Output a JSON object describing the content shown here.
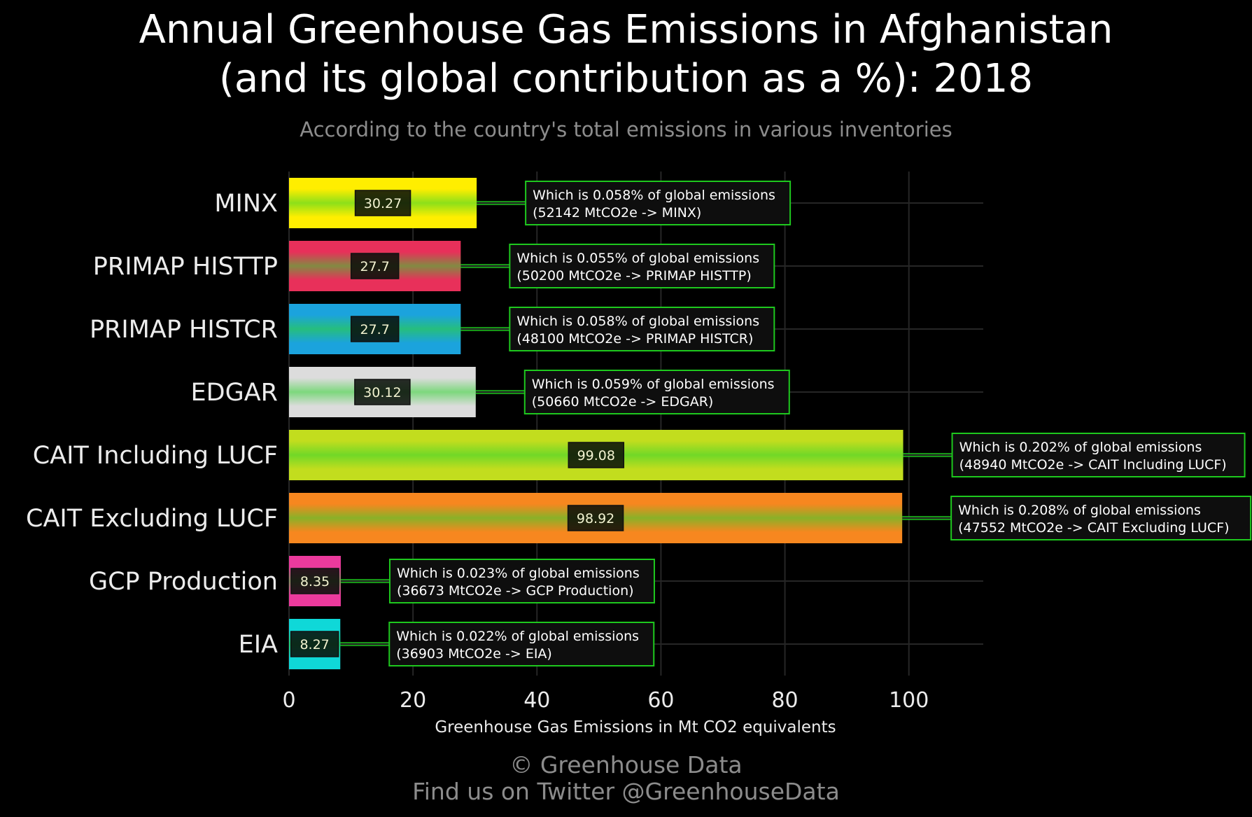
{
  "page": {
    "title_line1": "Annual Greenhouse Gas Emissions in Afghanistan",
    "title_line2": "(and its global contribution as a %): 2018",
    "subtitle": "According to the country's total emissions in various inventories",
    "copyright": "© Greenhouse Data",
    "twitter": "Find us on Twitter @GreenhouseData"
  },
  "chart_data": {
    "type": "bar",
    "orientation": "horizontal",
    "xlabel": "Greenhouse Gas Emissions in Mt CO2 equivalents",
    "ylabel": "",
    "xlim": [
      0,
      112
    ],
    "xticks": [
      0,
      20,
      40,
      60,
      80,
      100
    ],
    "grid": true,
    "categories": [
      "MINX",
      "PRIMAP HISTTP",
      "PRIMAP HISTCR",
      "EDGAR",
      "CAIT Including LUCF",
      "CAIT Excluding LUCF",
      "GCP Production",
      "EIA"
    ],
    "values": [
      30.27,
      27.7,
      27.7,
      30.12,
      99.08,
      98.92,
      8.35,
      8.27
    ],
    "value_labels": [
      "30.27",
      "27.7",
      "27.7",
      "30.12",
      "99.08",
      "98.92",
      "8.35",
      "8.27"
    ],
    "colors": [
      "#ffee00",
      "#e8305a",
      "#1ba3dd",
      "#dcdcdc",
      "#c2dd1e",
      "#f7871f",
      "#ec3a9d",
      "#0fd8d8"
    ],
    "annotations": [
      [
        "Which is 0.058% of global emissions",
        "(52142 MtCO2e -> MINX)"
      ],
      [
        "Which is 0.055% of global emissions",
        "(50200 MtCO2e -> PRIMAP HISTTP)"
      ],
      [
        "Which is 0.058% of global emissions",
        "(48100 MtCO2e -> PRIMAP HISTCR)"
      ],
      [
        "Which is 0.059% of global emissions",
        "(50660 MtCO2e -> EDGAR)"
      ],
      [
        "Which is 0.202% of global emissions",
        "(48940 MtCO2e -> CAIT Including LUCF)"
      ],
      [
        "Which is 0.208% of global emissions",
        "(47552 MtCO2e -> CAIT Excluding LUCF)"
      ],
      [
        "Which is 0.023% of global emissions",
        "(36673 MtCO2e -> GCP Production)"
      ],
      [
        "Which is 0.022% of global emissions",
        "(36903 MtCO2e -> EIA)"
      ]
    ],
    "accent_color": "#1ec81e"
  }
}
